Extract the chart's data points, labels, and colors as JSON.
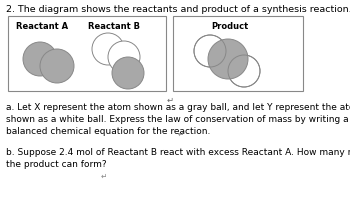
{
  "title": "2. The diagram shows the reactants and product of a synthesis reaction.",
  "title_fontsize": 6.8,
  "bg_color": "#ffffff",
  "box1_label": "Reactant A",
  "box2_label": "Reactant B",
  "box3_label": "Product",
  "label_fontsize": 6.0,
  "text_a": "a. Let X represent the atom shown as a gray ball, and let Y represent the atom\nshown as a white ball. Express the law of conservation of mass by writing a\nbalanced chemical equation for the reaction.",
  "text_b": "b. Suppose 2.4 mol of Reactant B react with excess Reactant A. How many moles of\nthe product can form?",
  "text_fontsize": 6.5,
  "gray_color": "#a8a8a8",
  "white_color": "#ffffff",
  "ball_edge_color": "#888888",
  "box_edge_color": "#888888",
  "return_arrow": "↵",
  "cursor": "↵"
}
